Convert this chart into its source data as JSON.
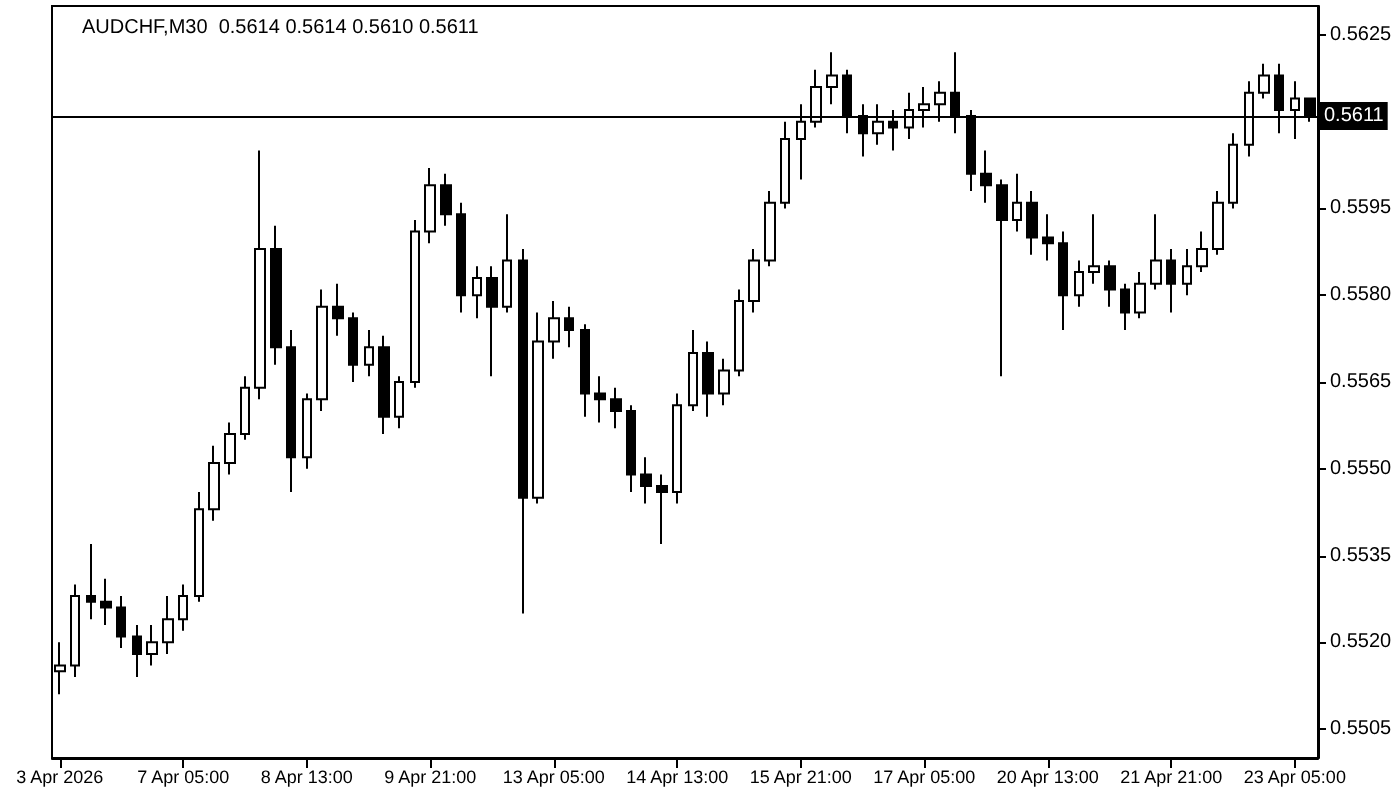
{
  "chart_data": {
    "type": "candlestick",
    "title": "AUDCHF,M30  0.5614 0.5614 0.5610 0.5611",
    "categories": [
      "3 Apr 2026",
      null,
      null,
      null,
      null,
      null,
      null,
      null,
      "7 Apr 05:00",
      null,
      null,
      null,
      null,
      null,
      null,
      null,
      "8 Apr 13:00",
      null,
      null,
      null,
      null,
      null,
      null,
      null,
      "9 Apr 21:00",
      null,
      null,
      null,
      null,
      null,
      null,
      null,
      "13 Apr 05:00",
      null,
      null,
      null,
      null,
      null,
      null,
      null,
      "14 Apr 13:00",
      null,
      null,
      null,
      null,
      null,
      null,
      null,
      "15 Apr 21:00",
      null,
      null,
      null,
      null,
      null,
      null,
      null,
      "17 Apr 05:00",
      null,
      null,
      null,
      null,
      null,
      null,
      null,
      "20 Apr 13:00",
      null,
      null,
      null,
      null,
      null,
      null,
      null,
      "21 Apr 21:00",
      null,
      null,
      null,
      null,
      null,
      null,
      null,
      "23 Apr 05:00",
      null
    ],
    "color": "#000000",
    "ohlc": [
      [
        0.5515,
        0.552,
        0.5511,
        0.5516
      ],
      [
        0.5516,
        0.553,
        0.5514,
        0.5528
      ],
      [
        0.5528,
        0.5537,
        0.5524,
        0.5527
      ],
      [
        0.5527,
        0.5531,
        0.5523,
        0.5526
      ],
      [
        0.5526,
        0.5528,
        0.5519,
        0.5521
      ],
      [
        0.5521,
        0.5523,
        0.5514,
        0.5518
      ],
      [
        0.5518,
        0.5523,
        0.5516,
        0.552
      ],
      [
        0.552,
        0.5528,
        0.5518,
        0.5524
      ],
      [
        0.5524,
        0.553,
        0.5522,
        0.5528
      ],
      [
        0.5528,
        0.5546,
        0.5527,
        0.5543
      ],
      [
        0.5543,
        0.5554,
        0.5541,
        0.5551
      ],
      [
        0.5551,
        0.5558,
        0.5549,
        0.5556
      ],
      [
        0.5556,
        0.5566,
        0.5555,
        0.5564
      ],
      [
        0.5564,
        0.5605,
        0.5562,
        0.5588
      ],
      [
        0.5588,
        0.5592,
        0.5568,
        0.5571
      ],
      [
        0.5571,
        0.5574,
        0.5546,
        0.5552
      ],
      [
        0.5552,
        0.5563,
        0.555,
        0.5562
      ],
      [
        0.5562,
        0.5581,
        0.556,
        0.5578
      ],
      [
        0.5578,
        0.5582,
        0.5573,
        0.5576
      ],
      [
        0.5576,
        0.5577,
        0.5565,
        0.5568
      ],
      [
        0.5568,
        0.5574,
        0.5566,
        0.5571
      ],
      [
        0.5571,
        0.5573,
        0.5556,
        0.5559
      ],
      [
        0.5559,
        0.5566,
        0.5557,
        0.5565
      ],
      [
        0.5565,
        0.5593,
        0.5564,
        0.5591
      ],
      [
        0.5591,
        0.5602,
        0.5589,
        0.5599
      ],
      [
        0.5599,
        0.5601,
        0.5592,
        0.5594
      ],
      [
        0.5594,
        0.5596,
        0.5577,
        0.558
      ],
      [
        0.558,
        0.5585,
        0.5576,
        0.5583
      ],
      [
        0.5583,
        0.5585,
        0.5566,
        0.5578
      ],
      [
        0.5578,
        0.5594,
        0.5577,
        0.5586
      ],
      [
        0.5586,
        0.5588,
        0.5525,
        0.5545
      ],
      [
        0.5545,
        0.5577,
        0.5544,
        0.5572
      ],
      [
        0.5572,
        0.5579,
        0.5569,
        0.5576
      ],
      [
        0.5576,
        0.5578,
        0.5571,
        0.5574
      ],
      [
        0.5574,
        0.5575,
        0.5559,
        0.5563
      ],
      [
        0.5563,
        0.5566,
        0.5558,
        0.5562
      ],
      [
        0.5562,
        0.5564,
        0.5557,
        0.556
      ],
      [
        0.556,
        0.5561,
        0.5546,
        0.5549
      ],
      [
        0.5549,
        0.5552,
        0.5544,
        0.5547
      ],
      [
        0.5547,
        0.5549,
        0.5537,
        0.5546
      ],
      [
        0.5546,
        0.5563,
        0.5544,
        0.5561
      ],
      [
        0.5561,
        0.5574,
        0.556,
        0.557
      ],
      [
        0.557,
        0.5572,
        0.5559,
        0.5563
      ],
      [
        0.5563,
        0.5569,
        0.5561,
        0.5567
      ],
      [
        0.5567,
        0.5581,
        0.5566,
        0.5579
      ],
      [
        0.5579,
        0.5588,
        0.5577,
        0.5586
      ],
      [
        0.5586,
        0.5598,
        0.5585,
        0.5596
      ],
      [
        0.5596,
        0.561,
        0.5595,
        0.5607
      ],
      [
        0.5607,
        0.5613,
        0.56,
        0.561
      ],
      [
        0.561,
        0.5619,
        0.5609,
        0.5616
      ],
      [
        0.5616,
        0.5622,
        0.5613,
        0.5618
      ],
      [
        0.5618,
        0.5619,
        0.5608,
        0.5611
      ],
      [
        0.5611,
        0.5613,
        0.5604,
        0.5608
      ],
      [
        0.5608,
        0.5613,
        0.5606,
        0.561
      ],
      [
        0.561,
        0.5612,
        0.5605,
        0.5609
      ],
      [
        0.5609,
        0.5615,
        0.5607,
        0.5612
      ],
      [
        0.5612,
        0.5616,
        0.5609,
        0.5613
      ],
      [
        0.5613,
        0.5617,
        0.561,
        0.5615
      ],
      [
        0.5615,
        0.5622,
        0.5608,
        0.5611
      ],
      [
        0.5611,
        0.5612,
        0.5598,
        0.5601
      ],
      [
        0.5601,
        0.5605,
        0.5596,
        0.5599
      ],
      [
        0.5599,
        0.56,
        0.5566,
        0.5593
      ],
      [
        0.5593,
        0.5601,
        0.5591,
        0.5596
      ],
      [
        0.5596,
        0.5598,
        0.5587,
        0.559
      ],
      [
        0.559,
        0.5594,
        0.5586,
        0.5589
      ],
      [
        0.5589,
        0.5591,
        0.5574,
        0.558
      ],
      [
        0.558,
        0.5586,
        0.5578,
        0.5584
      ],
      [
        0.5584,
        0.5594,
        0.5582,
        0.5585
      ],
      [
        0.5585,
        0.5586,
        0.5578,
        0.5581
      ],
      [
        0.5581,
        0.5582,
        0.5574,
        0.5577
      ],
      [
        0.5577,
        0.5584,
        0.5576,
        0.5582
      ],
      [
        0.5582,
        0.5594,
        0.5581,
        0.5586
      ],
      [
        0.5586,
        0.5588,
        0.5577,
        0.5582
      ],
      [
        0.5582,
        0.5588,
        0.558,
        0.5585
      ],
      [
        0.5585,
        0.5591,
        0.5584,
        0.5588
      ],
      [
        0.5588,
        0.5598,
        0.5587,
        0.5596
      ],
      [
        0.5596,
        0.5608,
        0.5595,
        0.5606
      ],
      [
        0.5606,
        0.5617,
        0.5604,
        0.5615
      ],
      [
        0.5615,
        0.562,
        0.5614,
        0.5618
      ],
      [
        0.5618,
        0.562,
        0.5608,
        0.5612
      ],
      [
        0.5612,
        0.5617,
        0.5607,
        0.5614
      ],
      [
        0.5614,
        0.5614,
        0.561,
        0.5611
      ]
    ],
    "ylim": [
      0.55,
      0.563
    ],
    "yticks": [
      0.5505,
      {
        "value": 0.552,
        "label": "0.5520"
      },
      0.5535,
      {
        "value": 0.555,
        "label": "0.5550"
      },
      0.5565,
      {
        "value": 0.558,
        "label": "0.5580"
      },
      0.5595,
      0.5625
    ],
    "ref_lines": [
      {
        "axis": "y",
        "value": 0.5611,
        "label": "0.5611",
        "color": "#000000"
      }
    ]
  }
}
